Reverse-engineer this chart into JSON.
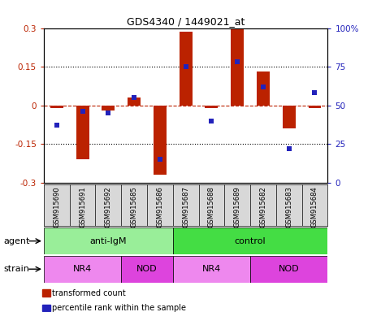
{
  "title": "GDS4340 / 1449021_at",
  "samples": [
    "GSM915690",
    "GSM915691",
    "GSM915692",
    "GSM915685",
    "GSM915686",
    "GSM915687",
    "GSM915688",
    "GSM915689",
    "GSM915682",
    "GSM915683",
    "GSM915684"
  ],
  "bar_values": [
    -0.01,
    -0.21,
    -0.02,
    0.03,
    -0.27,
    0.285,
    -0.01,
    0.295,
    0.13,
    -0.09,
    -0.01
  ],
  "dot_values": [
    37,
    46,
    45,
    55,
    15,
    75,
    40,
    78,
    62,
    22,
    58
  ],
  "bar_color": "#bb2200",
  "dot_color": "#2222bb",
  "ylim": [
    -0.3,
    0.3
  ],
  "y2lim": [
    0,
    100
  ],
  "yticks": [
    -0.3,
    -0.15,
    0,
    0.15,
    0.3
  ],
  "y2ticks": [
    0,
    25,
    50,
    75,
    100
  ],
  "ytick_labels": [
    "-0.3",
    "-0.15",
    "0",
    "0.15",
    "0.3"
  ],
  "y2tick_labels": [
    "0",
    "25",
    "50",
    "75",
    "100%"
  ],
  "dotted_lines": [
    -0.15,
    0.15
  ],
  "agent_groups": [
    {
      "label": "anti-IgM",
      "start": 0,
      "end": 5,
      "color": "#99ee99"
    },
    {
      "label": "control",
      "start": 5,
      "end": 11,
      "color": "#44dd44"
    }
  ],
  "strain_groups": [
    {
      "label": "NR4",
      "start": 0,
      "end": 3,
      "color": "#ee88ee"
    },
    {
      "label": "NOD",
      "start": 3,
      "end": 5,
      "color": "#dd44dd"
    },
    {
      "label": "NR4",
      "start": 5,
      "end": 8,
      "color": "#ee88ee"
    },
    {
      "label": "NOD",
      "start": 8,
      "end": 11,
      "color": "#dd44dd"
    }
  ],
  "legend_items": [
    {
      "label": "transformed count",
      "color": "#bb2200"
    },
    {
      "label": "percentile rank within the sample",
      "color": "#2222bb"
    }
  ],
  "bg_color": "#d8d8d8",
  "plot_bg": "#ffffff"
}
